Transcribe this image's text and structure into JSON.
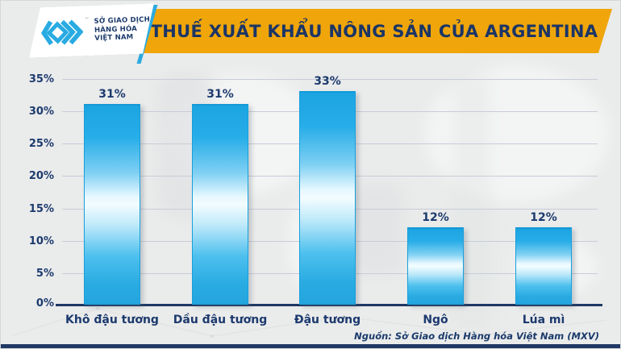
{
  "header": {
    "title": "THUẾ XUẤT KHẨU NÔNG SẢN CỦA ARGENTINA"
  },
  "logo": {
    "line1": "SỞ GIAO DỊCH",
    "line2": "HÀNG HÓA",
    "line3": "VIỆT NAM",
    "trademark": "™",
    "icon": "mxv-chevrons-icon"
  },
  "chart_data": {
    "type": "bar",
    "title": "THUẾ XUẤT KHẨU NÔNG SẢN CỦA ARGENTINA",
    "categories": [
      "Khô đậu tương",
      "Dầu đậu tương",
      "Đậu tương",
      "Ngô",
      "Lúa mì"
    ],
    "values": [
      31,
      31,
      33,
      12,
      12
    ],
    "value_labels": [
      "31%",
      "31%",
      "33%",
      "12%",
      "12%"
    ],
    "xlabel": "",
    "ylabel": "",
    "ylim": [
      0,
      35
    ],
    "ytick_step": 5,
    "ytick_labels_top_down": [
      "35%",
      "30%",
      "25%",
      "20%",
      "15%",
      "10%",
      "5%",
      "0%"
    ],
    "grid": true,
    "legend": false,
    "bar_color": "#29ABE2",
    "bar_gradient_mid": "#F2FCFF",
    "label_color": "#1C3A6E"
  },
  "footer": {
    "source": "Nguồn: Sở Giao dịch Hàng hóa Việt Nam (MXV)"
  },
  "colors": {
    "banner_gold": "#F0A60A",
    "navy": "#1B3A6B",
    "baseline_navy": "#1F3864",
    "background_gray": "#EAEBEB",
    "gridline": "#C7CDD7",
    "logo_cyan": "#29ABE2"
  }
}
